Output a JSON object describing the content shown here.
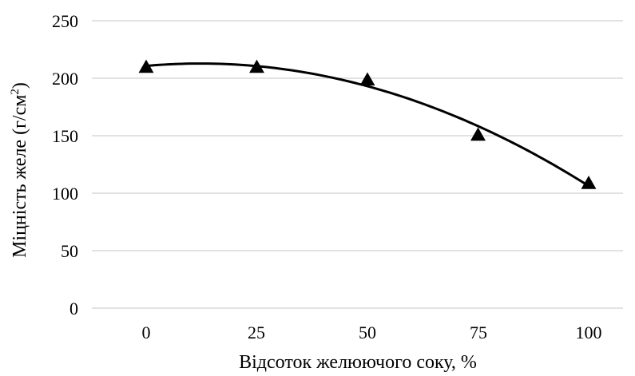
{
  "chart_data": {
    "type": "scatter",
    "title": "",
    "xlabel": "Відсоток желюючого соку, %",
    "ylabel_main": "Міцність желе (г/см",
    "ylabel_sup": "2",
    "ylabel_close": ")",
    "x": [
      0,
      25,
      50,
      75,
      100
    ],
    "series": [
      {
        "values": [
          210,
          210,
          199,
          151,
          109
        ],
        "marker": "triangle",
        "trendline": "polynomial-2"
      }
    ],
    "x_ticks": [
      "0",
      "25",
      "50",
      "75",
      "100"
    ],
    "y_ticks": [
      "0",
      "50",
      "100",
      "150",
      "200",
      "250"
    ],
    "xlim": [
      0,
      100
    ],
    "ylim": [
      0,
      250
    ],
    "grid": "horizontal",
    "legend": "none",
    "colors": {
      "grid": "#d9d9d9",
      "marker": "#000000",
      "trendline": "#000000",
      "text": "#000000"
    }
  }
}
